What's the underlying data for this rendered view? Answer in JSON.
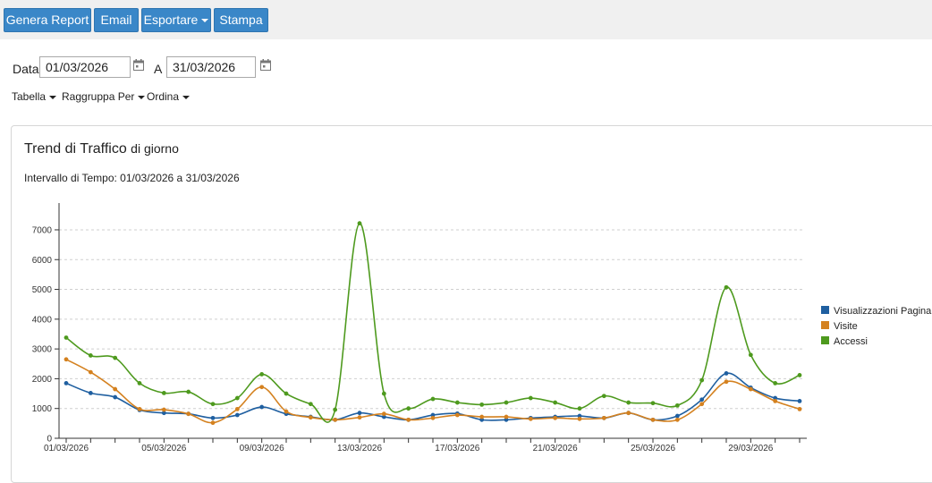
{
  "toolbar": {
    "report_label": "Genera Report",
    "email_label": "Email",
    "export_label": "Esportare",
    "print_label": "Stampa"
  },
  "filters": {
    "date_label": "Data",
    "from_value": "01/03/2026",
    "to_label": "A",
    "to_value": "31/03/2026",
    "table_label": "Tabella",
    "group_label": "Raggruppa Per",
    "sort_label": "Ordina"
  },
  "panel": {
    "title": "Trend di Traffico",
    "title_suffix": "di giorno",
    "interval": "Intervallo di Tempo: 01/03/2026 a 31/03/2026"
  },
  "chart_data": {
    "type": "line",
    "title": "",
    "xlabel": "",
    "ylabel": "",
    "x": [
      "01/03/2026",
      "02/03/2026",
      "03/03/2026",
      "04/03/2026",
      "05/03/2026",
      "06/03/2026",
      "07/03/2026",
      "08/03/2026",
      "09/03/2026",
      "10/03/2026",
      "11/03/2026",
      "12/03/2026",
      "13/03/2026",
      "14/03/2026",
      "15/03/2026",
      "16/03/2026",
      "17/03/2026",
      "18/03/2026",
      "19/03/2026",
      "20/03/2026",
      "21/03/2026",
      "22/03/2026",
      "23/03/2026",
      "24/03/2026",
      "25/03/2026",
      "26/03/2026",
      "27/03/2026",
      "28/03/2026",
      "29/03/2026",
      "30/03/2026",
      "31/03/2026"
    ],
    "x_tick_labels": [
      "01/03/2026",
      "05/03/2026",
      "09/03/2026",
      "13/03/2026",
      "17/03/2026",
      "21/03/2026",
      "25/03/2026",
      "29/03/2026"
    ],
    "y_ticks": [
      0,
      1000,
      2000,
      3000,
      4000,
      5000,
      6000,
      7000
    ],
    "ylim": [
      0,
      7900
    ],
    "grid": true,
    "legend_position": "right",
    "series": [
      {
        "name": "Visualizzazioni Pagina",
        "color": "#1f5fa0",
        "values": [
          1850,
          1520,
          1380,
          950,
          850,
          820,
          680,
          780,
          1050,
          820,
          720,
          620,
          850,
          720,
          620,
          780,
          830,
          620,
          620,
          680,
          720,
          750,
          680,
          850,
          620,
          750,
          1300,
          2180,
          1700,
          1350,
          1250
        ]
      },
      {
        "name": "Visite",
        "color": "#d4811f",
        "values": [
          2650,
          2220,
          1650,
          980,
          960,
          820,
          520,
          980,
          1720,
          900,
          700,
          620,
          700,
          820,
          620,
          680,
          780,
          720,
          720,
          650,
          680,
          650,
          680,
          850,
          620,
          620,
          1150,
          1900,
          1650,
          1250,
          980
        ]
      },
      {
        "name": "Accessi",
        "color": "#4e9a1e",
        "values": [
          3380,
          2780,
          2700,
          1850,
          1520,
          1560,
          1150,
          1350,
          2150,
          1500,
          1150,
          960,
          7220,
          1500,
          1000,
          1320,
          1200,
          1130,
          1200,
          1350,
          1200,
          1000,
          1420,
          1200,
          1180,
          1100,
          1950,
          5070,
          2800,
          1850,
          2120
        ]
      }
    ]
  }
}
